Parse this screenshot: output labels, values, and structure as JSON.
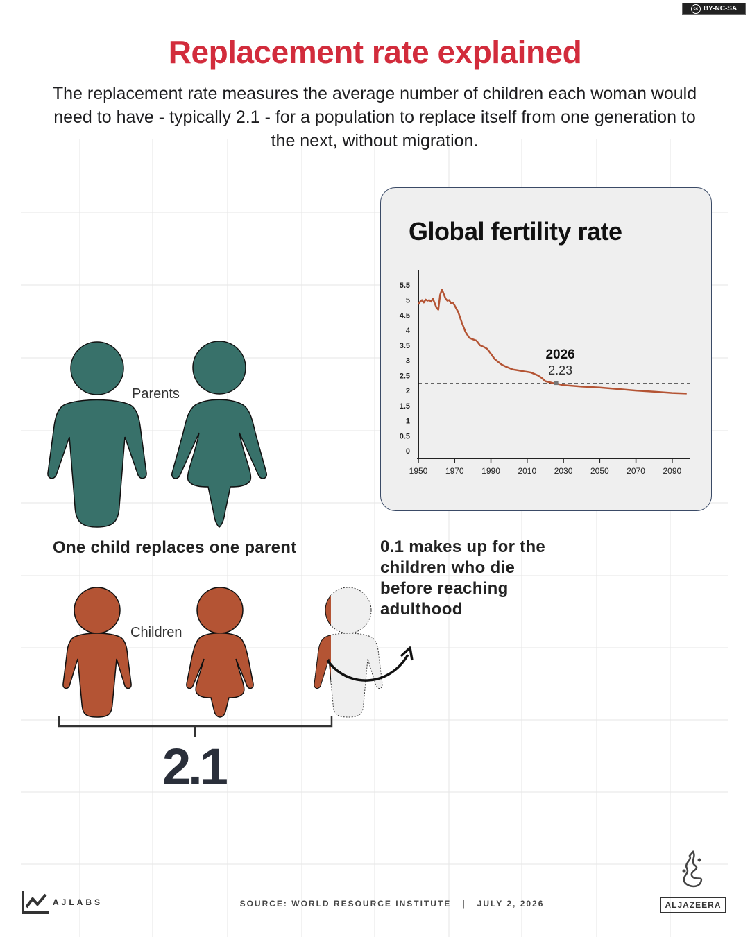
{
  "license": "BY-NC-SA",
  "title": "Replacement rate explained",
  "subtitle": "The replacement rate measures the average number of children each woman would need to have - typically 2.1 - for a population to replace itself from one generation to the next, without migration.",
  "figure": {
    "parents_label": "Parents",
    "children_label": "Children",
    "one_child_text": "One child replaces one parent",
    "note_text": "0.1 makes up for the children who die before reaching adulthood",
    "replacement_value": "2.1",
    "colors": {
      "parents": "#38716a",
      "children": "#b45434",
      "extra": "#efefef"
    }
  },
  "chart_data": {
    "type": "line",
    "title": "Global fertility rate",
    "xlabel": "",
    "ylabel": "",
    "xlim": [
      1950,
      2100
    ],
    "ylim": [
      0,
      5.5
    ],
    "x_ticks": [
      1950,
      1970,
      1990,
      2010,
      2030,
      2050,
      2070,
      2090
    ],
    "y_ticks": [
      0,
      0.5,
      1,
      1.5,
      2,
      2.5,
      3,
      3.5,
      4,
      4.5,
      5,
      5.5
    ],
    "y_tick_labels": [
      "0",
      "0.5",
      "1",
      "1.5",
      "2",
      "2.5",
      "3",
      "3.5",
      "4",
      "4.5",
      "5",
      "5.5"
    ],
    "grid": false,
    "series": [
      {
        "color": "#b45434",
        "points": [
          [
            1950,
            4.86
          ],
          [
            1951,
            4.95
          ],
          [
            1952,
            5.0
          ],
          [
            1953,
            4.92
          ],
          [
            1954,
            5.02
          ],
          [
            1955,
            4.98
          ],
          [
            1956,
            5.0
          ],
          [
            1957,
            4.95
          ],
          [
            1958,
            5.05
          ],
          [
            1959,
            4.9
          ],
          [
            1960,
            4.75
          ],
          [
            1961,
            4.68
          ],
          [
            1962,
            5.18
          ],
          [
            1963,
            5.35
          ],
          [
            1964,
            5.2
          ],
          [
            1965,
            5.05
          ],
          [
            1966,
            4.98
          ],
          [
            1967,
            5.0
          ],
          [
            1968,
            4.9
          ],
          [
            1969,
            4.92
          ],
          [
            1970,
            4.82
          ],
          [
            1972,
            4.6
          ],
          [
            1974,
            4.25
          ],
          [
            1976,
            3.95
          ],
          [
            1978,
            3.75
          ],
          [
            1980,
            3.7
          ],
          [
            1982,
            3.66
          ],
          [
            1984,
            3.5
          ],
          [
            1986,
            3.45
          ],
          [
            1988,
            3.38
          ],
          [
            1990,
            3.22
          ],
          [
            1992,
            3.05
          ],
          [
            1994,
            2.95
          ],
          [
            1996,
            2.86
          ],
          [
            1998,
            2.8
          ],
          [
            2000,
            2.75
          ],
          [
            2002,
            2.7
          ],
          [
            2004,
            2.68
          ],
          [
            2006,
            2.66
          ],
          [
            2008,
            2.64
          ],
          [
            2010,
            2.62
          ],
          [
            2012,
            2.6
          ],
          [
            2014,
            2.55
          ],
          [
            2016,
            2.5
          ],
          [
            2018,
            2.42
          ],
          [
            2020,
            2.31
          ],
          [
            2022,
            2.28
          ],
          [
            2024,
            2.25
          ],
          [
            2026,
            2.23
          ],
          [
            2030,
            2.18
          ],
          [
            2040,
            2.13
          ],
          [
            2050,
            2.1
          ],
          [
            2060,
            2.05
          ],
          [
            2070,
            2.0
          ],
          [
            2080,
            1.96
          ],
          [
            2090,
            1.92
          ],
          [
            2098,
            1.9
          ]
        ]
      }
    ],
    "reference_line": {
      "y": 2.23
    },
    "annotation": {
      "x": 2026,
      "y": 2.23,
      "label": "2026",
      "value": "2.23"
    }
  },
  "footer": {
    "source": "SOURCE: WORLD RESOURCE INSTITUTE",
    "date": "JULY 2, 2026",
    "brand_left": "AJLABS",
    "brand_right": "ALJAZEERA"
  }
}
